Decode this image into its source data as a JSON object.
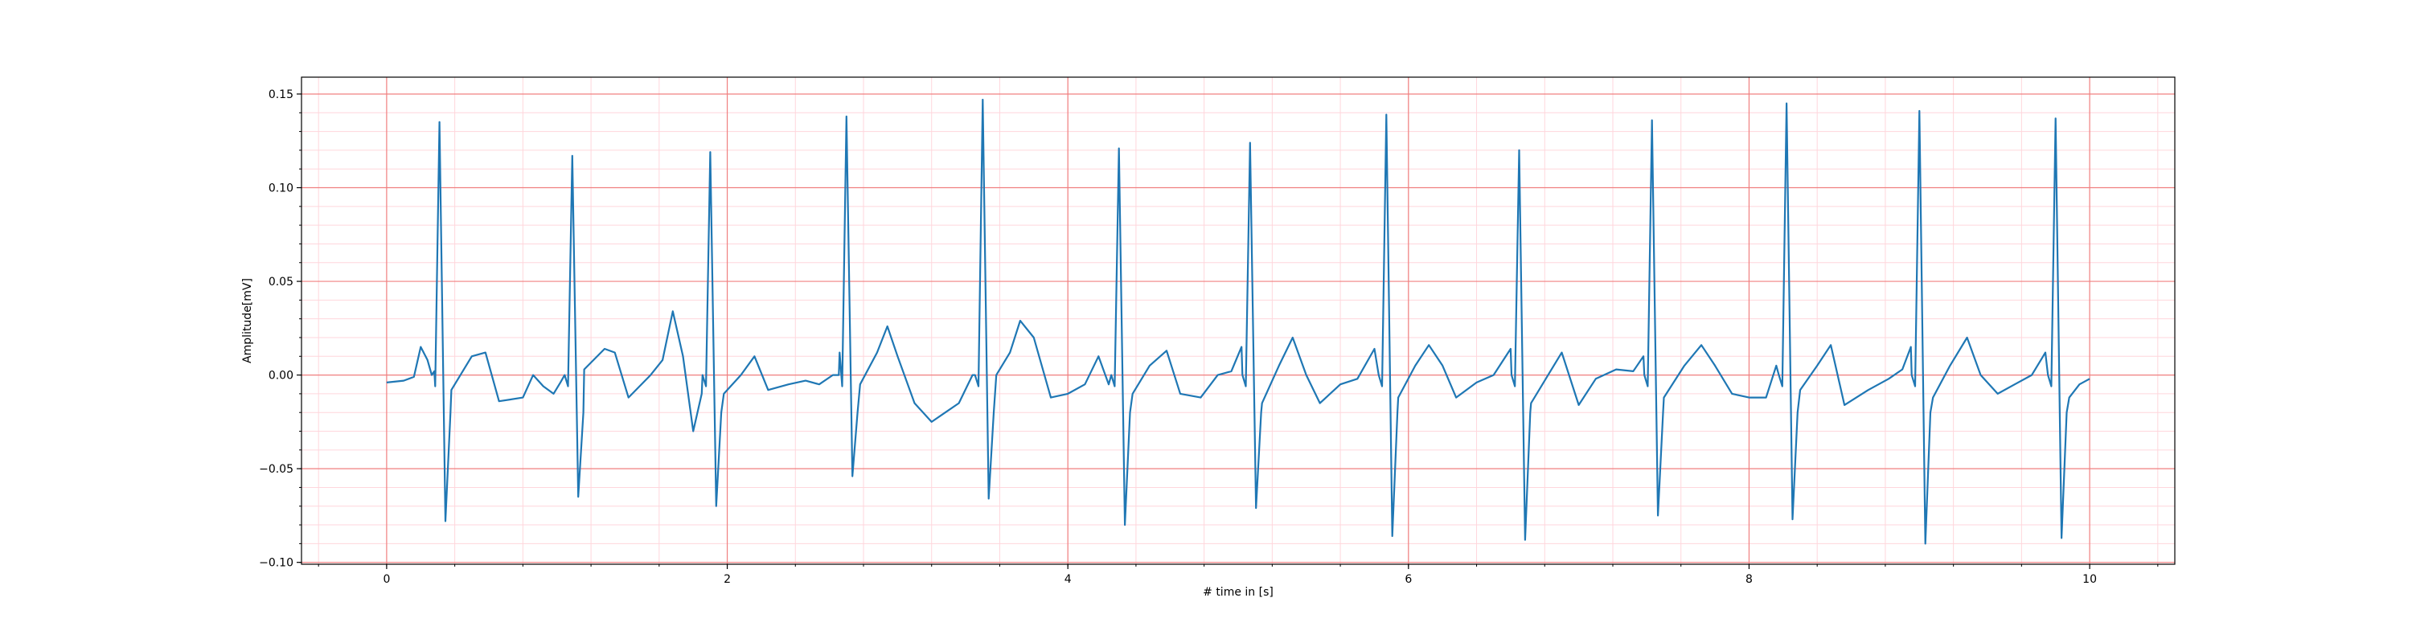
{
  "chart_data": {
    "type": "line",
    "title": "",
    "xlabel": "# time in [s]",
    "ylabel": "Amplitude[mV]",
    "xlim": [
      -0.5,
      10.5
    ],
    "ylim": [
      -0.101,
      0.159
    ],
    "x_ticks": [
      0,
      2,
      4,
      6,
      8,
      10
    ],
    "x_tick_labels": [
      "0",
      "2",
      "4",
      "6",
      "8",
      "10"
    ],
    "y_ticks": [
      -0.1,
      -0.05,
      0.0,
      0.05,
      0.1,
      0.15
    ],
    "y_tick_labels": [
      "−0.10",
      "−0.05",
      "0.00",
      "0.05",
      "0.10",
      "0.15"
    ],
    "grid": {
      "major": true,
      "minor": true,
      "major_color": "#f08080",
      "minor_color": "#ffd6dc"
    },
    "legend": null,
    "series": [
      {
        "color": "#1f77b4",
        "beats": [
          {
            "r_time": 0.31,
            "r_amp": 0.135,
            "s_amp": -0.078
          },
          {
            "r_time": 1.09,
            "r_amp": 0.117,
            "s_amp": -0.065
          },
          {
            "r_time": 1.9,
            "r_amp": 0.119,
            "s_amp": -0.07
          },
          {
            "r_time": 2.7,
            "r_amp": 0.138,
            "s_amp": -0.054
          },
          {
            "r_time": 3.5,
            "r_amp": 0.147,
            "s_amp": -0.066
          },
          {
            "r_time": 4.3,
            "r_amp": 0.121,
            "s_amp": -0.08
          },
          {
            "r_time": 5.07,
            "r_amp": 0.124,
            "s_amp": -0.071
          },
          {
            "r_time": 5.87,
            "r_amp": 0.139,
            "s_amp": -0.086
          },
          {
            "r_time": 6.65,
            "r_amp": 0.12,
            "s_amp": -0.088
          },
          {
            "r_time": 7.43,
            "r_amp": 0.136,
            "s_amp": -0.075
          },
          {
            "r_time": 8.22,
            "r_amp": 0.145,
            "s_amp": -0.077
          },
          {
            "r_time": 9.0,
            "r_amp": 0.141,
            "s_amp": -0.09
          },
          {
            "r_time": 9.8,
            "r_amp": 0.137,
            "s_amp": -0.087
          }
        ],
        "baseline_points": [
          [
            0.0,
            -0.004
          ],
          [
            0.1,
            -0.003
          ],
          [
            0.16,
            -0.001
          ],
          [
            0.2,
            0.015
          ],
          [
            0.24,
            0.008
          ],
          [
            0.28,
            0.002
          ],
          [
            0.38,
            -0.008
          ],
          [
            0.5,
            0.01
          ],
          [
            0.58,
            0.012
          ],
          [
            0.66,
            -0.014
          ],
          [
            0.8,
            -0.012
          ],
          [
            0.86,
            0.0
          ],
          [
            0.92,
            -0.006
          ],
          [
            0.98,
            -0.01
          ],
          [
            1.02,
            -0.004
          ],
          [
            1.16,
            0.003
          ],
          [
            1.28,
            0.014
          ],
          [
            1.34,
            0.012
          ],
          [
            1.42,
            -0.012
          ],
          [
            1.55,
            0.0
          ],
          [
            1.62,
            0.008
          ],
          [
            1.68,
            0.034
          ],
          [
            1.74,
            0.01
          ],
          [
            1.8,
            -0.03
          ],
          [
            1.85,
            -0.01
          ],
          [
            1.98,
            -0.01
          ],
          [
            2.08,
            0.0
          ],
          [
            2.16,
            0.01
          ],
          [
            2.24,
            -0.008
          ],
          [
            2.36,
            -0.005
          ],
          [
            2.46,
            -0.003
          ],
          [
            2.54,
            -0.005
          ],
          [
            2.62,
            0.0
          ],
          [
            2.66,
            0.012
          ],
          [
            2.78,
            -0.005
          ],
          [
            2.88,
            0.012
          ],
          [
            2.94,
            0.026
          ],
          [
            3.0,
            0.01
          ],
          [
            3.1,
            -0.015
          ],
          [
            3.2,
            -0.025
          ],
          [
            3.28,
            -0.02
          ],
          [
            3.36,
            -0.015
          ],
          [
            3.44,
            0.0
          ],
          [
            3.58,
            0.0
          ],
          [
            3.66,
            0.012
          ],
          [
            3.72,
            0.029
          ],
          [
            3.8,
            0.02
          ],
          [
            3.9,
            -0.012
          ],
          [
            4.0,
            -0.01
          ],
          [
            4.1,
            -0.005
          ],
          [
            4.18,
            0.01
          ],
          [
            4.24,
            -0.005
          ],
          [
            4.38,
            -0.01
          ],
          [
            4.48,
            0.005
          ],
          [
            4.58,
            0.013
          ],
          [
            4.66,
            -0.01
          ],
          [
            4.78,
            -0.012
          ],
          [
            4.88,
            0.0
          ],
          [
            4.96,
            0.002
          ],
          [
            5.02,
            0.015
          ],
          [
            5.14,
            -0.015
          ],
          [
            5.24,
            0.005
          ],
          [
            5.32,
            0.02
          ],
          [
            5.4,
            0.0
          ],
          [
            5.48,
            -0.015
          ],
          [
            5.6,
            -0.005
          ],
          [
            5.7,
            -0.002
          ],
          [
            5.8,
            0.014
          ],
          [
            5.94,
            -0.012
          ],
          [
            6.04,
            0.005
          ],
          [
            6.12,
            0.016
          ],
          [
            6.2,
            0.005
          ],
          [
            6.28,
            -0.012
          ],
          [
            6.4,
            -0.004
          ],
          [
            6.5,
            0.0
          ],
          [
            6.6,
            0.014
          ],
          [
            6.72,
            -0.015
          ],
          [
            6.82,
            0.0
          ],
          [
            6.9,
            0.012
          ],
          [
            7.0,
            -0.016
          ],
          [
            7.1,
            -0.002
          ],
          [
            7.22,
            0.003
          ],
          [
            7.32,
            0.002
          ],
          [
            7.38,
            0.01
          ],
          [
            7.5,
            -0.012
          ],
          [
            7.62,
            0.005
          ],
          [
            7.72,
            0.016
          ],
          [
            7.8,
            0.005
          ],
          [
            7.9,
            -0.01
          ],
          [
            8.0,
            -0.012
          ],
          [
            8.1,
            -0.012
          ],
          [
            8.16,
            0.005
          ],
          [
            8.3,
            -0.008
          ],
          [
            8.4,
            0.005
          ],
          [
            8.48,
            0.016
          ],
          [
            8.56,
            -0.016
          ],
          [
            8.7,
            -0.008
          ],
          [
            8.82,
            -0.002
          ],
          [
            8.9,
            0.003
          ],
          [
            8.95,
            0.015
          ],
          [
            9.08,
            -0.012
          ],
          [
            9.18,
            0.005
          ],
          [
            9.28,
            0.02
          ],
          [
            9.36,
            0.0
          ],
          [
            9.46,
            -0.01
          ],
          [
            9.56,
            -0.005
          ],
          [
            9.66,
            0.0
          ],
          [
            9.74,
            0.012
          ],
          [
            9.88,
            -0.012
          ],
          [
            9.94,
            -0.005
          ],
          [
            10.0,
            -0.002
          ]
        ]
      }
    ]
  }
}
